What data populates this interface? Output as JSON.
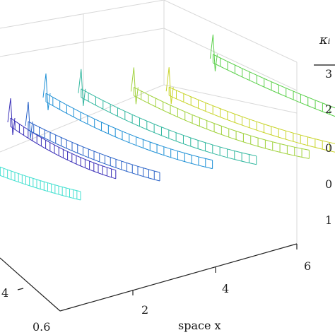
{
  "chart_data": {
    "type": "3d-wireframe",
    "title": "",
    "xlabel": "space x",
    "x_ticks": [
      "2",
      "4",
      "6"
    ],
    "y_ticks": [
      "4",
      "0.6"
    ],
    "legend_header": "κᵢ",
    "legend_entries": [
      "3",
      "2",
      "0",
      "0",
      "1"
    ],
    "grid": true,
    "series": [
      {
        "color": "#40e0d0",
        "x": [
          0.0,
          1.0,
          2.0
        ],
        "values": [
          0.35,
          0.22,
          0.12
        ]
      },
      {
        "color": "#3a2fb8",
        "x": [
          0.0,
          1.2,
          2.4
        ],
        "values": [
          0.72,
          0.44,
          0.26
        ]
      },
      {
        "color": "#2a63c8",
        "x": [
          0.0,
          1.5,
          3.0
        ],
        "values": [
          0.62,
          0.36,
          0.18
        ]
      },
      {
        "color": "#1e90d6",
        "x": [
          0.0,
          1.9,
          3.8
        ],
        "values": [
          0.82,
          0.46,
          0.24
        ]
      },
      {
        "color": "#33b8a0",
        "x": [
          0.4,
          2.4,
          4.4
        ],
        "values": [
          0.8,
          0.44,
          0.22
        ]
      },
      {
        "color": "#a0d23c",
        "x": [
          1.2,
          3.2,
          5.2
        ],
        "values": [
          0.76,
          0.42,
          0.22
        ]
      },
      {
        "color": "#c8d428",
        "x": [
          1.6,
          3.6,
          5.6
        ],
        "values": [
          0.7,
          0.4,
          0.2
        ]
      },
      {
        "color": "#5ad04a",
        "x": [
          2.2,
          4.2,
          6.2
        ],
        "values": [
          0.95,
          0.6,
          0.32
        ]
      }
    ]
  }
}
